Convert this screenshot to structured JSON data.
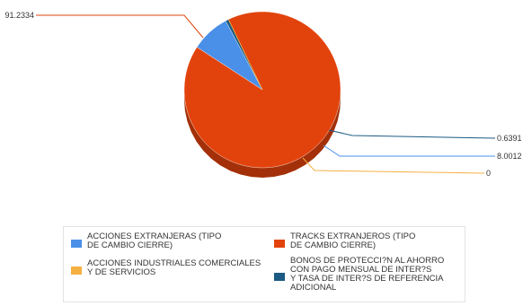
{
  "chart_data": {
    "type": "pie",
    "title": "",
    "slices": [
      {
        "label": "TRACKS EXTRANJEROS (TIPO\nDE CAMBIO CIERRE)",
        "value": 91.2334,
        "value_label": "91.2334",
        "color": "#e2430c"
      },
      {
        "label": "ACCIONES EXTRANJERAS (TIPO\nDE CAMBIO CIERRE)",
        "value": 8.0012,
        "value_label": "8.0012",
        "color": "#4a8fe8"
      },
      {
        "label": "BONOS DE PROTECCI?N AL AHORRO\nCON PAGO MENSUAL DE INTER?S\nY TASA DE INTER?S DE REFERENCIA\nADICIONAL",
        "value": 0.6391,
        "value_label": "0.6391",
        "color": "#1b5a84"
      },
      {
        "label": "ACCIONES INDUSTRIALES COMERCIALES\nY DE SERVICIOS",
        "value": 0,
        "value_label": "0",
        "color": "#f5b042"
      }
    ],
    "legend_position": "bottom",
    "legend_order": [
      1,
      0,
      3,
      2
    ]
  }
}
